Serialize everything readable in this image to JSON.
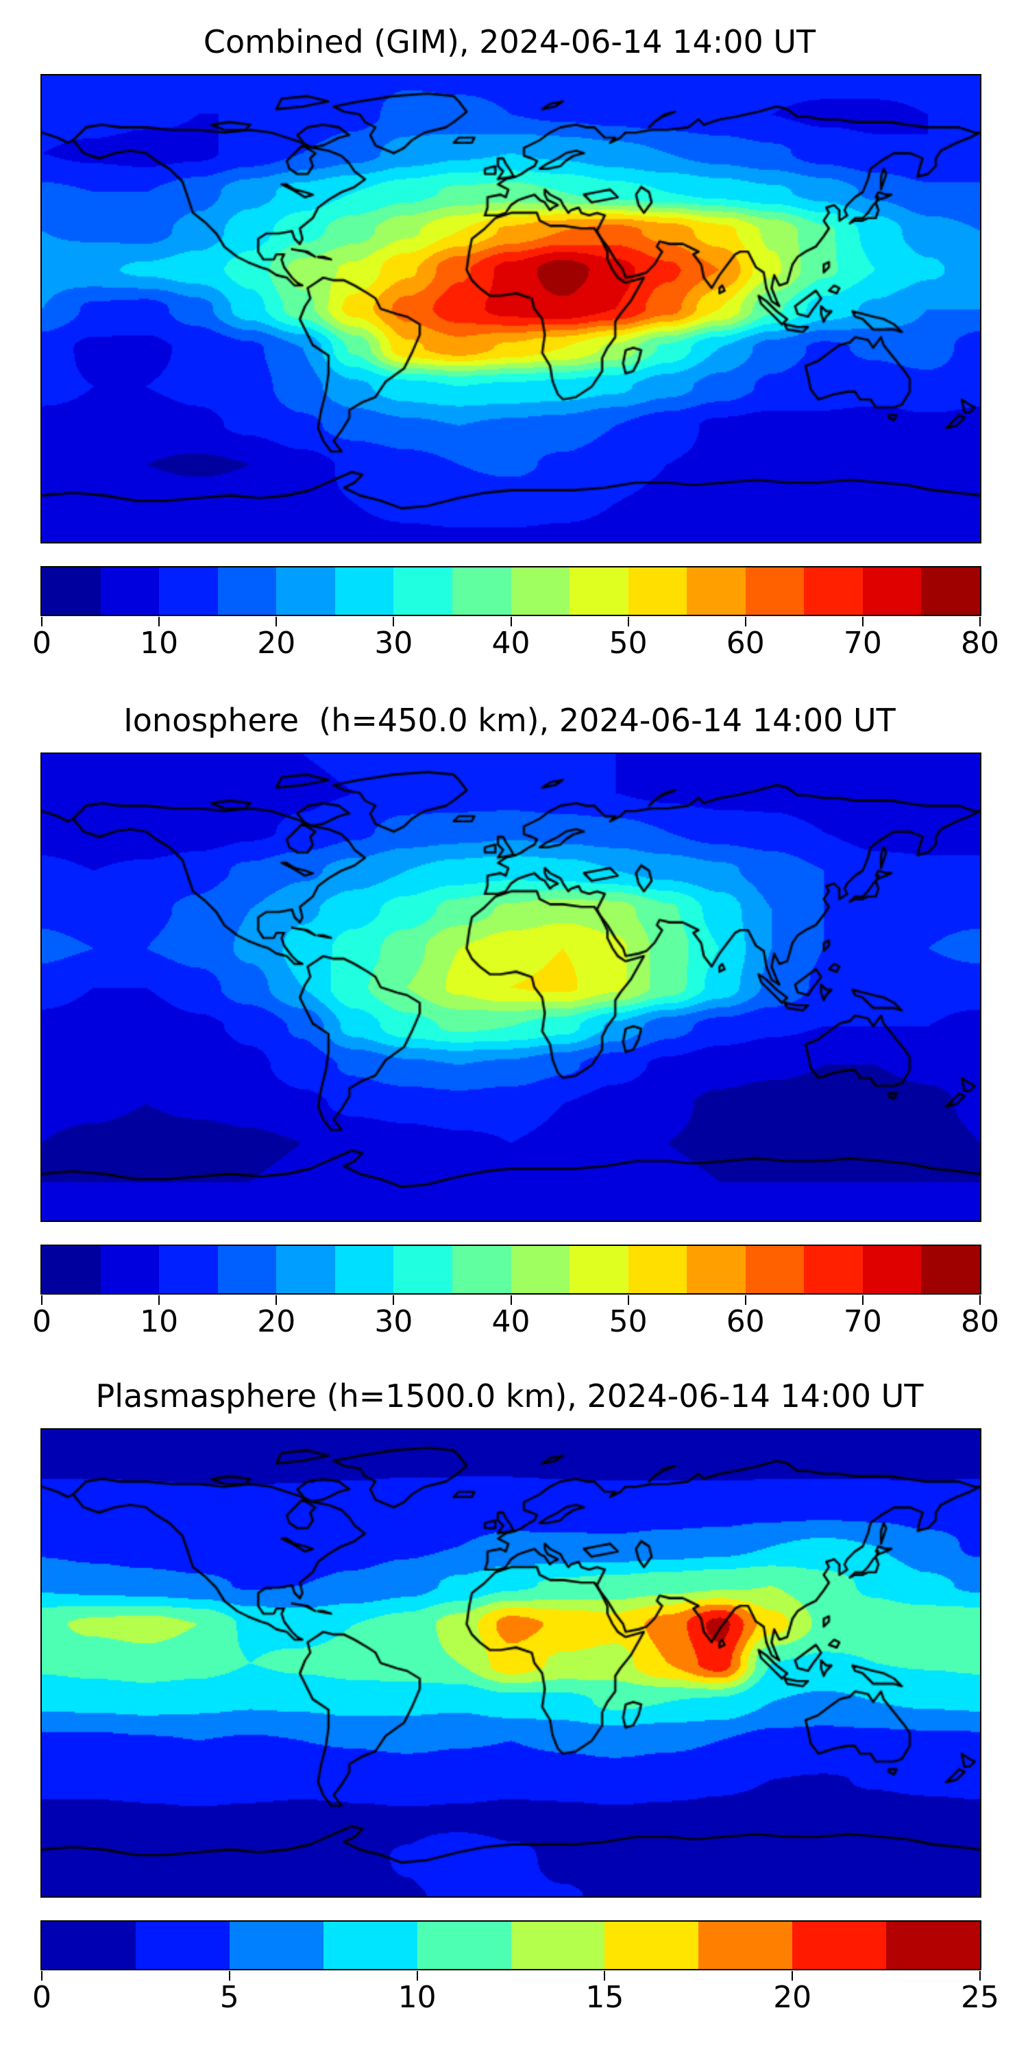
{
  "figure": {
    "background_color": "#ffffff",
    "text_color": "#000000",
    "coastline_color": "#000000",
    "colormap": "jet",
    "projection": "equirectangular",
    "lon_range": [
      -180,
      180
    ],
    "lat_range": [
      -90,
      90
    ]
  },
  "chart_data": [
    {
      "type": "heatmap",
      "title": "Combined (GIM), 2024-06-14 14:00 UT",
      "vmin": 0,
      "vmax": 80,
      "n_levels": 16,
      "colorbar_ticks": [
        0,
        10,
        20,
        30,
        40,
        50,
        60,
        70,
        80
      ],
      "lats": [
        90,
        75,
        60,
        45,
        30,
        15,
        0,
        -15,
        -30,
        -45,
        -60,
        -75,
        -90
      ],
      "lons": [
        -180,
        -160,
        -140,
        -120,
        -100,
        -80,
        -60,
        -40,
        -20,
        0,
        20,
        40,
        60,
        80,
        100,
        120,
        140,
        160,
        180
      ],
      "values": [
        [
          13,
          13,
          13,
          13,
          13,
          13,
          13,
          14,
          14,
          14,
          14,
          13,
          13,
          12,
          12,
          12,
          12,
          12,
          13
        ],
        [
          12,
          12,
          11,
          10,
          10,
          11,
          13,
          17,
          16,
          15,
          14,
          13,
          12,
          11,
          10,
          9,
          9,
          10,
          12
        ],
        [
          10,
          9,
          8,
          9,
          12,
          15,
          18,
          22,
          24,
          25,
          24,
          22,
          20,
          18,
          16,
          13,
          11,
          10,
          10
        ],
        [
          16,
          15,
          15,
          18,
          23,
          27,
          30,
          33,
          36,
          37,
          35,
          32,
          30,
          28,
          26,
          23,
          19,
          16,
          16
        ],
        [
          20,
          19,
          18,
          22,
          28,
          33,
          38,
          44,
          50,
          56,
          60,
          62,
          58,
          52,
          44,
          36,
          28,
          22,
          20
        ],
        [
          22,
          24,
          26,
          28,
          32,
          42,
          46,
          54,
          64,
          72,
          78,
          72,
          66,
          60,
          46,
          36,
          30,
          26,
          22
        ],
        [
          20,
          14,
          13,
          18,
          28,
          38,
          52,
          62,
          68,
          72,
          74,
          70,
          62,
          50,
          36,
          28,
          24,
          20,
          20
        ],
        [
          12,
          9,
          9,
          11,
          14,
          20,
          36,
          54,
          58,
          54,
          50,
          44,
          34,
          25,
          18,
          14,
          16,
          18,
          12
        ],
        [
          11,
          10,
          10,
          11,
          13,
          18,
          24,
          28,
          30,
          29,
          28,
          26,
          22,
          18,
          14,
          12,
          12,
          13,
          11
        ],
        [
          9,
          9,
          8,
          9,
          11,
          14,
          17,
          19,
          20,
          19,
          18,
          15,
          12,
          9,
          8,
          9,
          8,
          9,
          9
        ],
        [
          8,
          7,
          5,
          4,
          5,
          8,
          11,
          13,
          15,
          16,
          14,
          12,
          10,
          9,
          9,
          9,
          9,
          8,
          8
        ],
        [
          8,
          8,
          8,
          8,
          8,
          9,
          10,
          11,
          12,
          12,
          11,
          10,
          9,
          9,
          8,
          8,
          8,
          8,
          8
        ],
        [
          9,
          9,
          9,
          9,
          9,
          9,
          9,
          9,
          9,
          9,
          9,
          9,
          9,
          9,
          9,
          9,
          9,
          9,
          9
        ]
      ]
    },
    {
      "type": "heatmap",
      "title": "Ionosphere  (h=450.0 km), 2024-06-14 14:00 UT",
      "vmin": 0,
      "vmax": 80,
      "n_levels": 16,
      "colorbar_ticks": [
        0,
        10,
        20,
        30,
        40,
        50,
        60,
        70,
        80
      ],
      "lats": [
        90,
        75,
        60,
        45,
        30,
        15,
        0,
        -15,
        -30,
        -45,
        -60,
        -75,
        -90
      ],
      "lons": [
        -180,
        -160,
        -140,
        -120,
        -100,
        -80,
        -60,
        -40,
        -20,
        0,
        20,
        40,
        60,
        80,
        100,
        120,
        140,
        160,
        180
      ],
      "values": [
        [
          10,
          10,
          10,
          10,
          10,
          10,
          11,
          11,
          11,
          11,
          11,
          10,
          10,
          10,
          9,
          9,
          9,
          9,
          10
        ],
        [
          9,
          9,
          9,
          8,
          8,
          9,
          10,
          12,
          12,
          12,
          11,
          10,
          9,
          8,
          8,
          7,
          7,
          8,
          9
        ],
        [
          8,
          7,
          6,
          7,
          9,
          11,
          14,
          17,
          18,
          19,
          18,
          17,
          15,
          13,
          12,
          10,
          8,
          8,
          8
        ],
        [
          11,
          10,
          11,
          13,
          16,
          19,
          22,
          25,
          27,
          28,
          27,
          25,
          23,
          21,
          18,
          15,
          12,
          11,
          11
        ],
        [
          14,
          13,
          14,
          16,
          20,
          24,
          28,
          32,
          37,
          41,
          43,
          42,
          36,
          28,
          20,
          15,
          13,
          14,
          14
        ],
        [
          16,
          15,
          15,
          17,
          21,
          27,
          32,
          38,
          45,
          48,
          50,
          46,
          38,
          30,
          20,
          15,
          14,
          15,
          16
        ],
        [
          13,
          10,
          10,
          13,
          18,
          25,
          34,
          40,
          46,
          50,
          51,
          46,
          38,
          28,
          19,
          14,
          13,
          13,
          13
        ],
        [
          8,
          7,
          7,
          9,
          11,
          16,
          27,
          33,
          36,
          35,
          32,
          24,
          17,
          13,
          11,
          10,
          10,
          10,
          8
        ],
        [
          7,
          6,
          6,
          7,
          9,
          12,
          16,
          19,
          20,
          19,
          16,
          12,
          9,
          7,
          6,
          5,
          5,
          6,
          7
        ],
        [
          6,
          6,
          5,
          6,
          7,
          9,
          11,
          12,
          13,
          12,
          10,
          8,
          6,
          4,
          3,
          3,
          3,
          4,
          6
        ],
        [
          5,
          4,
          3,
          3,
          4,
          5,
          7,
          8,
          9,
          10,
          9,
          7,
          5,
          4,
          3,
          3,
          3,
          3,
          5
        ],
        [
          5,
          5,
          5,
          5,
          5,
          6,
          6,
          7,
          7,
          7,
          7,
          6,
          6,
          5,
          5,
          5,
          5,
          5,
          5
        ],
        [
          6,
          6,
          6,
          6,
          6,
          6,
          6,
          6,
          6,
          6,
          6,
          6,
          6,
          6,
          6,
          6,
          6,
          6,
          6
        ]
      ]
    },
    {
      "type": "heatmap",
      "title": "Plasmasphere (h=1500.0 km), 2024-06-14 14:00 UT",
      "vmin": 0,
      "vmax": 25,
      "n_levels": 10,
      "colorbar_ticks": [
        0,
        5,
        10,
        15,
        20,
        25
      ],
      "lats": [
        90,
        75,
        60,
        45,
        30,
        15,
        0,
        -15,
        -30,
        -45,
        -60,
        -75,
        -90
      ],
      "lons": [
        -180,
        -160,
        -140,
        -120,
        -100,
        -80,
        -60,
        -40,
        -20,
        0,
        20,
        40,
        60,
        80,
        100,
        120,
        140,
        160,
        180
      ],
      "values": [
        [
          1.5,
          1.5,
          1.5,
          1.5,
          1.5,
          1.5,
          1.5,
          1.5,
          1.5,
          1.5,
          1.5,
          1.5,
          1.5,
          1.5,
          1.5,
          1.5,
          1.5,
          1.5,
          1.5
        ],
        [
          2.2,
          2.2,
          2.2,
          2.2,
          2.2,
          2.2,
          2.2,
          2.3,
          2.3,
          2.3,
          2.2,
          2.2,
          2.2,
          2.2,
          2.2,
          2.2,
          2.2,
          2.2,
          2.2
        ],
        [
          4,
          4,
          3.5,
          3,
          3,
          3.2,
          3.5,
          3.8,
          4,
          4,
          3.8,
          3.5,
          3.5,
          3.5,
          3.8,
          4,
          3.8,
          3.4,
          4
        ],
        [
          4.5,
          4,
          3.5,
          3.2,
          3.2,
          3.5,
          4,
          4.5,
          5,
          5.5,
          5.5,
          5.5,
          6,
          6.5,
          7.5,
          8,
          7.5,
          6,
          4.5
        ],
        [
          7,
          6.5,
          6,
          5.5,
          4.8,
          5,
          5.5,
          6.5,
          8,
          9.5,
          10.5,
          11,
          11.5,
          12,
          12.5,
          11,
          9.5,
          8,
          7
        ],
        [
          12,
          13,
          13.5,
          12.5,
          9.5,
          9,
          10,
          11,
          13.5,
          18.5,
          17,
          16,
          18.5,
          23.3,
          16,
          12,
          11.5,
          11.8,
          12
        ],
        [
          10.5,
          11,
          11.5,
          11,
          10,
          10.5,
          11,
          11.5,
          12.5,
          16.5,
          14.5,
          14,
          17.5,
          21.5,
          10,
          9.5,
          10,
          10.2,
          10.5
        ],
        [
          8,
          8.2,
          8.5,
          8.2,
          7.8,
          8,
          8.5,
          8.3,
          8,
          9,
          9.2,
          10.5,
          10,
          9.5,
          7.5,
          7,
          7.5,
          7.8,
          8
        ],
        [
          4.5,
          4.5,
          4.8,
          5,
          4.8,
          5,
          5.2,
          5.5,
          5.2,
          5,
          5.5,
          6,
          5.5,
          5,
          4.2,
          4,
          4.2,
          4.4,
          4.5
        ],
        [
          3,
          3,
          3.2,
          3.5,
          3.2,
          3,
          3.2,
          3.5,
          3.3,
          3,
          3.2,
          3.5,
          3.2,
          2.8,
          2.5,
          2.4,
          2.6,
          2.8,
          3
        ],
        [
          2,
          2,
          2.1,
          2.2,
          2.1,
          2,
          2.1,
          2.2,
          2.1,
          2,
          2,
          2.1,
          2,
          2,
          1.9,
          1.9,
          2,
          2,
          2
        ],
        [
          2,
          2,
          2,
          2,
          2,
          2,
          2.2,
          2.6,
          3.5,
          2.8,
          2.2,
          2,
          2,
          2,
          2,
          2,
          2,
          2,
          2
        ],
        [
          2,
          2,
          2,
          2,
          2,
          2,
          2.2,
          2.4,
          2.7,
          2.8,
          2.6,
          2.3,
          2.1,
          2,
          2,
          2,
          2,
          2,
          2
        ]
      ]
    }
  ]
}
